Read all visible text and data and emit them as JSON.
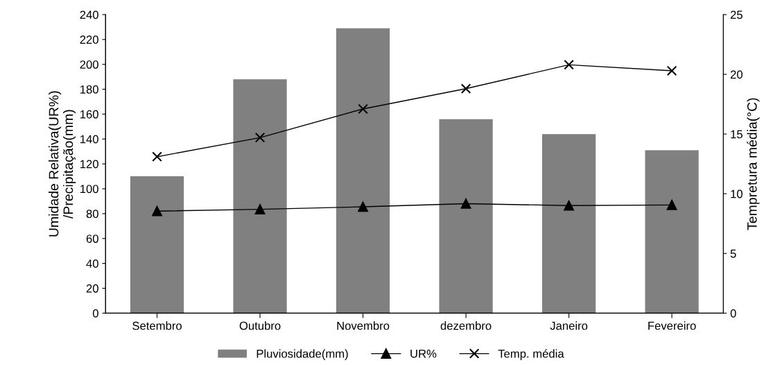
{
  "chart_data": {
    "type": "bar",
    "categories": [
      "Setembro",
      "Outubro",
      "Novembro",
      "dezembro",
      "Janeiro",
      "Fevereiro"
    ],
    "ylabel": "Umidade Relativa(UR%)\n/Precipitação(mm)",
    "y2label": "Tempretura média(°C)",
    "ylim": [
      0,
      240
    ],
    "yticks": [
      0,
      20,
      40,
      60,
      80,
      100,
      120,
      140,
      160,
      180,
      200,
      220,
      240
    ],
    "y2lim": [
      0,
      25
    ],
    "y2ticks": [
      0,
      5,
      10,
      15,
      20,
      25
    ],
    "legend": "bottom",
    "grid": false,
    "series": [
      {
        "name": "Pluviosidade(mm)",
        "color": "#808080",
        "values": [
          110,
          188,
          229,
          156,
          144,
          131
        ]
      },
      {
        "name": "UR%",
        "type": "line",
        "color": "#000000",
        "marker": "triangle",
        "values": [
          82,
          83.5,
          85.5,
          88,
          86.5,
          87
        ]
      },
      {
        "name": "Temp. média",
        "type": "line",
        "color": "#000000",
        "marker": "cross",
        "axis": "y2",
        "values": [
          13.1,
          14.7,
          17.1,
          18.8,
          20.8,
          20.3
        ]
      }
    ]
  }
}
